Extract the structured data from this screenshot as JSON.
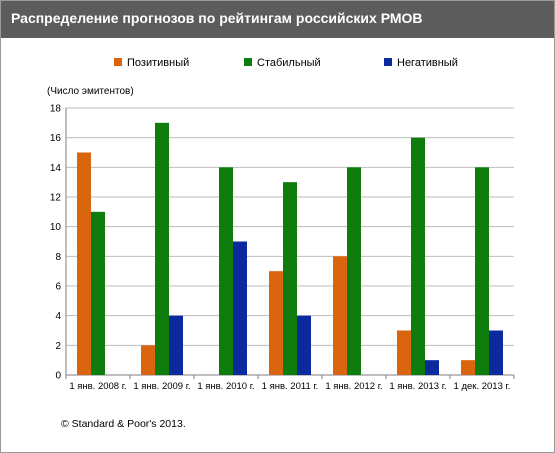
{
  "header": {
    "title": "Распределение прогнозов по рейтингам российских РМОВ"
  },
  "footer": {
    "copyright": "© Standard & Poor's 2013."
  },
  "chart_data": {
    "type": "bar",
    "ylabel": "(Число эмитентов)",
    "ylim": [
      0,
      18
    ],
    "yticks": [
      0,
      2,
      4,
      6,
      8,
      10,
      12,
      14,
      16,
      18
    ],
    "grid": true,
    "legend_position": "top",
    "categories": [
      "1 янв. 2008 г.",
      "1 янв. 2009 г.",
      "1 янв. 2010 г.",
      "1 янв. 2011 г.",
      "1 янв.  2012 г.",
      "1 янв. 2013 г.",
      "1 дек. 2013 г."
    ],
    "series": [
      {
        "name": "Позитивный",
        "color": "#d9650e",
        "values": [
          15,
          2,
          0,
          7,
          8,
          3,
          1
        ]
      },
      {
        "name": "Стабильный",
        "color": "#0e7d0e",
        "values": [
          11,
          17,
          14,
          13,
          14,
          16,
          14
        ]
      },
      {
        "name": "Негативный",
        "color": "#0a2a9e",
        "values": [
          0,
          4,
          9,
          4,
          0,
          1,
          3
        ]
      }
    ]
  }
}
